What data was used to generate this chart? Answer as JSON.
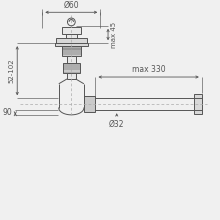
{
  "bg_color": "#f0f0f0",
  "line_color": "#555555",
  "dim_color": "#555555",
  "dash_color": "#aaaaaa",
  "fill_light": "#d8d8d8",
  "fill_white": "#e8e8e8",
  "fig_size": [
    2.2,
    2.2
  ],
  "dpi": 100,
  "annotations": {
    "d60": "Ø60",
    "max45": "max 45",
    "range52_102": "52-102",
    "d32": "Ø32",
    "max330": "max 330",
    "dim90": "90"
  }
}
